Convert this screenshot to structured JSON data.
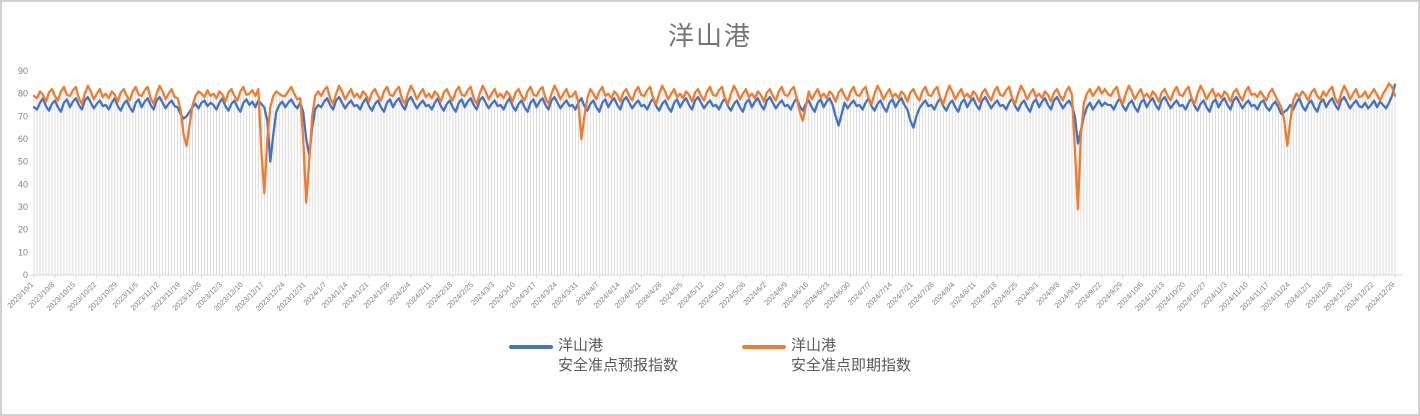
{
  "title": "洋山港",
  "legend": {
    "entries": [
      {
        "line1": "洋山港",
        "line2": "安全准点预报指数",
        "color": "#4472C4"
      },
      {
        "line1": "洋山港",
        "line2": "安全准点即期指数",
        "color": "#ED7D31"
      }
    ]
  },
  "colors": {
    "axis": "#d9d9d9",
    "drop_line": "#d9d9d9",
    "tick_label": "#808080",
    "title": "#757575",
    "legend_text": "#595959"
  },
  "chart_data": {
    "type": "line",
    "title": "洋山港",
    "xlabel": "",
    "ylabel": "",
    "ylim": [
      0,
      90
    ],
    "y_ticks": [
      0,
      10,
      20,
      30,
      40,
      50,
      60,
      70,
      80,
      90
    ],
    "grid": false,
    "drop_lines": true,
    "legend_position": "bottom",
    "points_per_tick": 7,
    "x_tick_labels": [
      "2023/10/1",
      "2023/10/8",
      "2023/10/15",
      "2023/10/22",
      "2023/10/29",
      "2023/11/5",
      "2023/11/12",
      "2023/11/19",
      "2023/11/26",
      "2023/12/3",
      "2023/12/10",
      "2023/12/17",
      "2023/12/24",
      "2023/12/31",
      "2024/1/7",
      "2024/1/14",
      "2024/1/21",
      "2024/1/28",
      "2024/2/4",
      "2024/2/11",
      "2024/2/18",
      "2024/2/25",
      "2024/3/3",
      "2024/3/10",
      "2024/3/17",
      "2024/3/24",
      "2024/3/31",
      "2024/4/7",
      "2024/4/14",
      "2024/4/21",
      "2024/4/28",
      "2024/5/5",
      "2024/5/12",
      "2024/5/19",
      "2024/5/26",
      "2024/6/2",
      "2024/6/9",
      "2024/6/16",
      "2024/6/23",
      "2024/6/30",
      "2024/7/7",
      "2024/7/14",
      "2024/7/21",
      "2024/7/28",
      "2024/8/4",
      "2024/8/11",
      "2024/8/18",
      "2024/8/25",
      "2024/9/1",
      "2024/9/8",
      "2024/9/15",
      "2024/9/22",
      "2024/9/29",
      "2024/10/6",
      "2024/10/13",
      "2024/10/20",
      "2024/10/27",
      "2024/11/3",
      "2024/11/10",
      "2024/11/17",
      "2024/11/24",
      "2024/12/1",
      "2024/12/8",
      "2024/12/15",
      "2024/12/22",
      "2024/12/29"
    ],
    "series": [
      {
        "name": "洋山港 安全准点预报指数",
        "color": "#4472C4",
        "values": [
          74,
          73,
          76,
          78,
          74.5,
          72.5,
          75.5,
          77,
          74,
          72,
          76,
          77.5,
          74,
          76.5,
          78,
          75,
          73,
          77,
          78.5,
          76,
          73.5,
          75.5,
          77,
          74.5,
          75,
          73,
          76,
          78,
          74.5,
          72.5,
          75.5,
          77,
          74,
          72,
          76,
          77.5,
          74,
          76.5,
          78,
          75,
          73,
          77,
          78.5,
          76,
          73.5,
          75.5,
          77,
          74.5,
          74,
          71,
          69,
          70,
          72,
          74,
          75.5,
          73.5,
          76,
          77,
          74.5,
          76,
          75,
          73,
          76,
          78,
          74.5,
          72.5,
          75.5,
          77,
          74,
          72,
          76,
          77.5,
          75,
          76.5,
          74,
          77,
          75.5,
          74,
          68,
          50,
          62,
          72,
          75,
          76.5,
          74,
          76,
          77.5,
          75,
          73.5,
          76,
          72,
          60,
          53,
          65,
          73,
          75,
          74,
          76.5,
          78,
          75,
          73,
          77,
          78.5,
          76,
          73.5,
          75.5,
          77,
          74.5,
          75,
          73,
          76,
          78,
          74.5,
          72.5,
          75.5,
          77,
          74,
          72,
          76,
          77.5,
          74,
          76.5,
          78,
          75,
          73,
          77,
          78.5,
          76,
          73.5,
          75.5,
          77,
          74.5,
          75,
          73,
          76,
          78,
          74.5,
          72.5,
          75.5,
          77,
          74,
          72,
          76,
          77.5,
          74,
          76.5,
          78,
          75,
          73,
          77,
          78.5,
          76,
          73.5,
          75.5,
          77,
          74.5,
          75,
          73,
          76,
          78,
          74.5,
          72.5,
          75.5,
          77,
          74,
          72,
          76,
          77.5,
          74,
          76.5,
          78,
          75,
          73,
          77,
          78.5,
          76,
          73.5,
          75.5,
          77,
          74.5,
          75,
          73,
          76,
          78,
          74.5,
          72.5,
          75.5,
          77,
          74,
          72,
          76,
          77.5,
          74,
          76.5,
          78,
          75,
          73,
          77,
          78.5,
          76,
          73.5,
          75.5,
          77,
          74.5,
          75,
          73,
          76,
          78,
          74.5,
          72.5,
          75.5,
          77,
          74,
          72,
          76,
          77.5,
          74,
          76.5,
          78,
          75,
          73,
          77,
          78.5,
          76,
          73.5,
          75.5,
          77,
          74.5,
          75,
          73,
          76,
          78,
          74.5,
          72.5,
          75.5,
          77,
          74,
          72,
          76,
          77.5,
          74,
          76.5,
          78,
          75,
          73,
          77,
          78.5,
          76,
          73.5,
          75.5,
          77,
          74.5,
          75,
          73,
          76,
          78,
          74.5,
          72.5,
          75.5,
          77,
          74,
          72,
          76,
          77.5,
          74,
          76.5,
          78,
          75,
          70,
          66,
          71,
          76,
          73.5,
          75.5,
          77,
          74.5,
          75,
          73,
          76,
          78,
          74.5,
          72.5,
          75.5,
          77,
          74,
          72,
          76,
          77.5,
          74,
          76.5,
          78,
          75,
          73,
          68,
          65,
          70,
          73.5,
          75.5,
          77,
          74.5,
          75,
          73,
          76,
          78,
          74.5,
          72.5,
          75.5,
          77,
          74,
          72,
          76,
          77.5,
          74,
          76.5,
          78,
          75,
          73,
          77,
          78.5,
          76,
          73.5,
          75.5,
          77,
          74.5,
          75,
          73,
          76,
          78,
          74.5,
          72.5,
          75.5,
          77,
          74,
          72,
          76,
          77.5,
          74,
          76.5,
          78,
          75,
          73,
          77,
          78.5,
          76,
          73.5,
          75.5,
          77,
          74.5,
          70,
          58,
          64,
          70,
          74,
          76,
          73,
          75,
          77,
          74.5,
          76,
          75,
          75,
          73,
          76,
          78,
          74.5,
          72.5,
          75.5,
          77,
          74,
          72,
          76,
          77.5,
          74,
          76.5,
          78,
          75,
          73,
          77,
          78.5,
          76,
          73.5,
          75.5,
          77,
          74.5,
          75,
          73,
          76,
          78,
          74.5,
          72.5,
          75.5,
          77,
          74,
          72,
          76,
          77.5,
          74,
          76.5,
          78,
          75,
          73,
          77,
          78.5,
          76,
          73.5,
          75.5,
          77,
          74.5,
          75,
          73,
          76,
          77,
          74,
          72.5,
          75,
          76.5,
          74,
          71,
          72,
          73,
          75,
          73,
          76,
          78,
          74.5,
          72.5,
          75.5,
          77,
          74,
          72,
          76,
          77.5,
          74,
          76.5,
          78,
          75,
          73,
          77,
          78.5,
          76,
          73.5,
          75.5,
          77,
          74.5,
          74,
          76,
          73.5,
          75,
          77,
          74,
          76.5,
          75,
          73.5,
          76,
          79,
          84
        ]
      },
      {
        "name": "洋山港 安全准点即期指数",
        "color": "#ED7D31",
        "values": [
          79,
          78,
          81,
          79.5,
          76.5,
          80.5,
          82,
          79,
          77,
          81,
          83,
          79.5,
          79,
          81.5,
          83,
          78,
          75.5,
          80,
          83.5,
          81,
          77.5,
          80,
          82,
          78.5,
          80,
          78,
          81,
          79.5,
          76.5,
          80.5,
          82,
          79,
          77,
          81,
          83,
          79.5,
          79,
          81.5,
          83,
          78,
          75.5,
          80,
          83.5,
          81,
          77.5,
          80,
          82,
          78.5,
          78,
          73,
          62,
          57,
          66,
          75,
          79,
          81,
          80,
          78.5,
          81.5,
          79,
          80,
          78,
          81,
          79.5,
          76.5,
          80.5,
          82,
          79,
          77,
          81,
          83,
          79.5,
          80,
          81.5,
          79,
          82,
          55,
          36,
          60,
          74,
          79,
          81,
          80,
          79,
          79,
          81,
          83,
          80,
          77.5,
          78,
          60,
          32,
          50,
          70,
          79,
          81,
          79,
          81.5,
          83,
          78,
          75.5,
          80,
          83.5,
          81,
          77.5,
          80,
          82,
          78.5,
          80,
          78,
          81,
          79.5,
          76.5,
          80.5,
          82,
          79,
          77,
          81,
          83,
          79.5,
          79,
          81.5,
          83,
          78,
          75.5,
          80,
          83.5,
          81,
          77.5,
          80,
          82,
          78.5,
          80,
          78,
          81,
          79.5,
          76.5,
          80.5,
          82,
          79,
          77,
          81,
          83,
          79.5,
          79,
          81.5,
          83,
          78,
          75.5,
          80,
          83.5,
          81,
          77.5,
          80,
          82,
          78.5,
          80,
          78,
          81,
          79.5,
          76.5,
          80.5,
          82,
          79,
          77,
          81,
          83,
          79.5,
          79,
          81.5,
          83,
          78,
          75.5,
          80,
          83.5,
          81,
          77.5,
          80,
          82,
          78.5,
          79,
          81,
          76,
          60,
          70,
          78,
          82,
          80,
          77.5,
          81,
          83,
          79,
          80,
          78,
          81,
          79.5,
          76.5,
          80.5,
          82,
          79,
          77,
          81,
          83,
          79.5,
          79,
          81.5,
          83,
          78,
          75.5,
          80,
          83.5,
          81,
          77.5,
          80,
          82,
          78.5,
          80,
          78,
          81,
          79.5,
          76.5,
          80.5,
          82,
          79,
          77,
          81,
          83,
          79.5,
          79,
          81.5,
          83,
          78,
          75.5,
          80,
          83.5,
          81,
          77.5,
          80,
          82,
          78.5,
          80,
          78,
          81,
          79.5,
          76.5,
          80.5,
          82,
          79,
          77,
          81,
          83,
          79.5,
          79,
          81.5,
          83,
          78,
          72,
          68,
          74,
          81,
          77.5,
          80,
          82,
          78.5,
          80,
          78,
          81,
          79.5,
          76.5,
          80.5,
          82,
          79,
          77,
          81,
          83,
          79.5,
          79,
          81.5,
          83,
          78,
          75.5,
          80,
          83.5,
          81,
          77.5,
          80,
          82,
          78.5,
          80,
          78,
          81,
          79.5,
          76.5,
          80.5,
          82,
          79,
          77,
          81,
          83,
          79.5,
          79,
          81.5,
          83,
          78,
          75.5,
          80,
          83.5,
          81,
          77.5,
          80,
          82,
          78.5,
          80,
          78,
          81,
          79.5,
          76.5,
          80.5,
          82,
          79,
          77,
          81,
          83,
          79.5,
          79,
          81.5,
          83,
          78,
          75.5,
          80,
          83.5,
          81,
          77.5,
          80,
          82,
          78.5,
          80,
          78,
          81,
          79.5,
          76.5,
          80.5,
          82,
          79,
          77,
          81,
          83,
          79.5,
          55,
          29,
          62,
          76,
          80,
          82,
          79,
          81,
          83,
          80,
          82,
          80,
          79,
          81.5,
          83,
          78,
          75.5,
          80,
          83.5,
          81,
          77.5,
          80,
          82,
          78.5,
          80,
          78,
          81,
          79.5,
          76.5,
          80.5,
          82,
          79,
          77,
          81,
          83,
          79.5,
          79,
          81.5,
          83,
          78,
          75.5,
          80,
          83.5,
          81,
          77.5,
          80,
          82,
          78.5,
          80,
          78,
          81,
          79.5,
          76.5,
          80.5,
          82,
          79,
          77,
          81,
          83,
          79.5,
          80,
          78.5,
          81,
          79,
          77,
          80.5,
          82,
          79,
          76.5,
          74,
          68,
          57,
          68,
          77,
          80,
          78.5,
          81,
          79.5,
          77,
          80.5,
          82,
          79,
          77.5,
          81,
          79,
          81.5,
          83,
          78,
          75.5,
          80,
          83.5,
          81,
          77.5,
          80,
          82,
          78.5,
          79,
          81,
          78,
          80,
          82,
          79.5,
          77,
          80,
          82,
          84.5,
          83,
          79
        ]
      }
    ]
  }
}
